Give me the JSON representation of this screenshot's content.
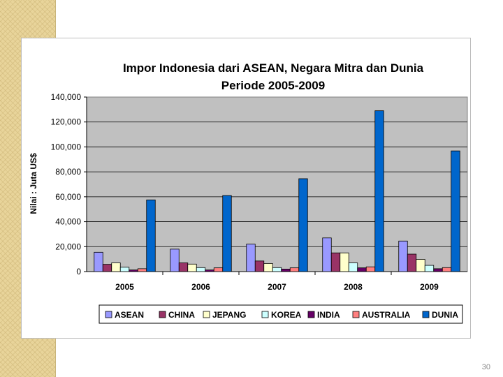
{
  "page_number": "30",
  "chart_data": {
    "type": "bar",
    "title_line1": "Impor Indonesia dari ASEAN, Negara Mitra dan Dunia",
    "title_line2": "Periode 2005-2009",
    "ylabel": "Nilai : Juta US$",
    "xlabel": "",
    "ylim": [
      0,
      140000
    ],
    "yticks": [
      "0",
      "20,000",
      "40,000",
      "60,000",
      "80,000",
      "100,000",
      "120,000",
      "140,000"
    ],
    "categories": [
      "2005",
      "2006",
      "2007",
      "2008",
      "2009"
    ],
    "grid": true,
    "legend_position": "bottom",
    "series": [
      {
        "name": "ASEAN",
        "color": "#9999ff",
        "values": [
          15500,
          18000,
          22000,
          27000,
          24500
        ]
      },
      {
        "name": "CHINA",
        "color": "#993366",
        "values": [
          5800,
          7000,
          8500,
          15000,
          14000
        ]
      },
      {
        "name": "JEPANG",
        "color": "#ffffcc",
        "values": [
          7000,
          6000,
          6500,
          15000,
          9800
        ]
      },
      {
        "name": "KOREA",
        "color": "#ccffff",
        "values": [
          3500,
          3200,
          3200,
          7000,
          5000
        ]
      },
      {
        "name": "INDIA",
        "color": "#660066",
        "values": [
          1300,
          1300,
          2000,
          3000,
          2300
        ]
      },
      {
        "name": "AUSTRALIA",
        "color": "#ff8080",
        "values": [
          2300,
          3000,
          3000,
          3800,
          3200
        ]
      },
      {
        "name": "DUNIA",
        "color": "#0066cc",
        "values": [
          57500,
          61000,
          74500,
          129000,
          96800
        ]
      }
    ]
  }
}
